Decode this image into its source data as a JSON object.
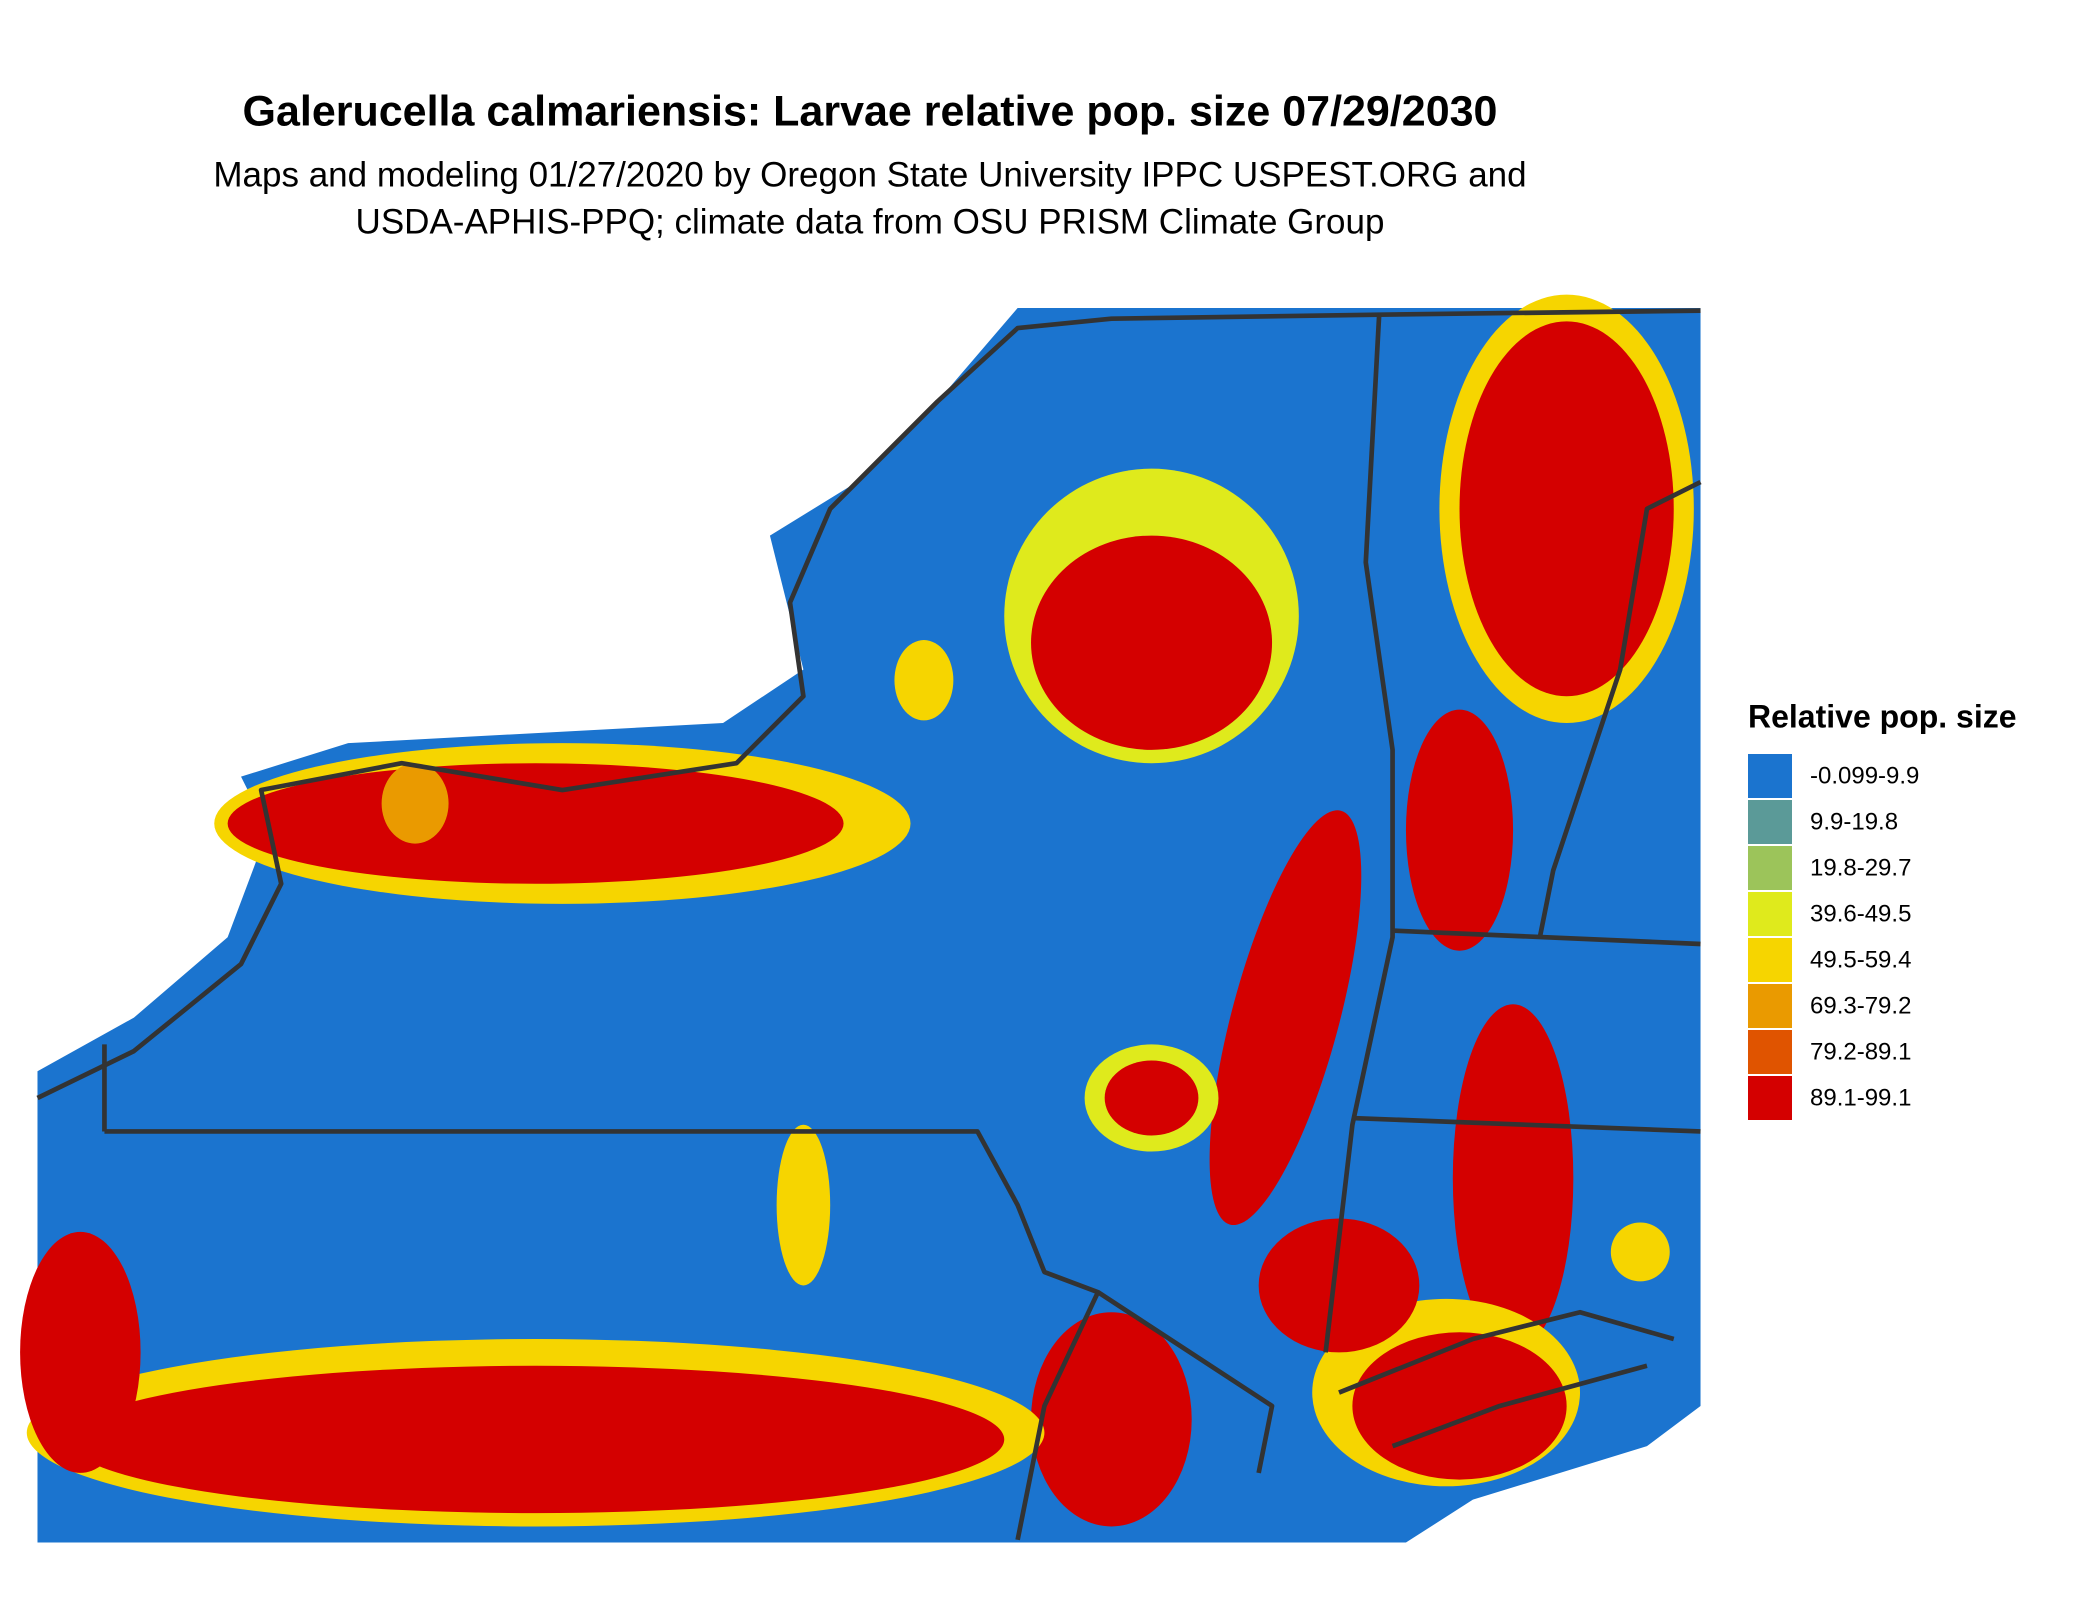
{
  "title": "Galerucella calmariensis: Larvae relative pop. size 07/29/2030",
  "subtitle": [
    "Maps and modeling 01/27/2020 by Oregon State University IPPC USPEST.ORG and",
    "USDA-APHIS-PPQ; climate data from OSU PRISM Climate Group"
  ],
  "legend": {
    "title": "Relative pop. size",
    "items": [
      {
        "label": "-0.099-9.9",
        "color": "#1b74cf"
      },
      {
        "label": "9.9-19.8",
        "color": "#5b9a98"
      },
      {
        "label": "19.8-29.7",
        "color": "#9cc45a"
      },
      {
        "label": "39.6-49.5",
        "color": "#dfea1c"
      },
      {
        "label": "49.5-59.4",
        "color": "#f6d500"
      },
      {
        "label": "69.3-79.2",
        "color": "#ea9a00"
      },
      {
        "label": "79.2-89.1",
        "color": "#e05400"
      },
      {
        "label": "89.1-99.1",
        "color": "#d40000"
      }
    ]
  }
}
